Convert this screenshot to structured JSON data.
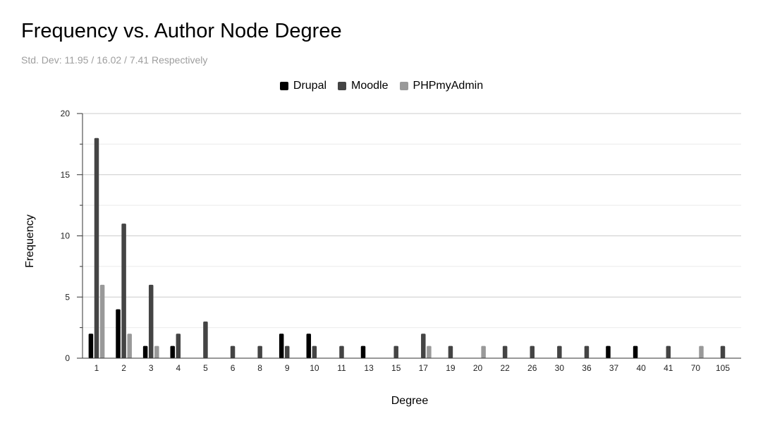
{
  "chart_data": {
    "type": "bar",
    "title": "Frequency vs. Author Node Degree",
    "subtitle": "Std. Dev: 11.95 / 16.02 / 7.41 Respectively",
    "xlabel": "Degree",
    "ylabel": "Frequency",
    "ylim": [
      0,
      20
    ],
    "yticks": [
      0,
      5,
      10,
      15,
      20
    ],
    "grid": true,
    "legend_position": "top",
    "categories": [
      "1",
      "2",
      "3",
      "4",
      "5",
      "6",
      "8",
      "9",
      "10",
      "11",
      "13",
      "15",
      "17",
      "19",
      "20",
      "22",
      "26",
      "30",
      "36",
      "37",
      "40",
      "41",
      "70",
      "105"
    ],
    "series": [
      {
        "name": "Drupal",
        "color": "#000000",
        "values": [
          2,
          4,
          1,
          1,
          0,
          0,
          0,
          2,
          2,
          0,
          1,
          0,
          0,
          0,
          0,
          0,
          0,
          0,
          0,
          1,
          1,
          0,
          0,
          0
        ]
      },
      {
        "name": "Moodle",
        "color": "#444444",
        "values": [
          18,
          11,
          6,
          2,
          3,
          1,
          1,
          1,
          1,
          1,
          0,
          1,
          2,
          1,
          0,
          1,
          1,
          1,
          1,
          0,
          0,
          1,
          0,
          1
        ]
      },
      {
        "name": "PHPmyAdmin",
        "color": "#999999",
        "values": [
          6,
          2,
          1,
          0,
          0,
          0,
          0,
          0,
          0,
          0,
          0,
          0,
          1,
          0,
          1,
          0,
          0,
          0,
          0,
          0,
          0,
          0,
          1,
          0
        ]
      }
    ]
  }
}
